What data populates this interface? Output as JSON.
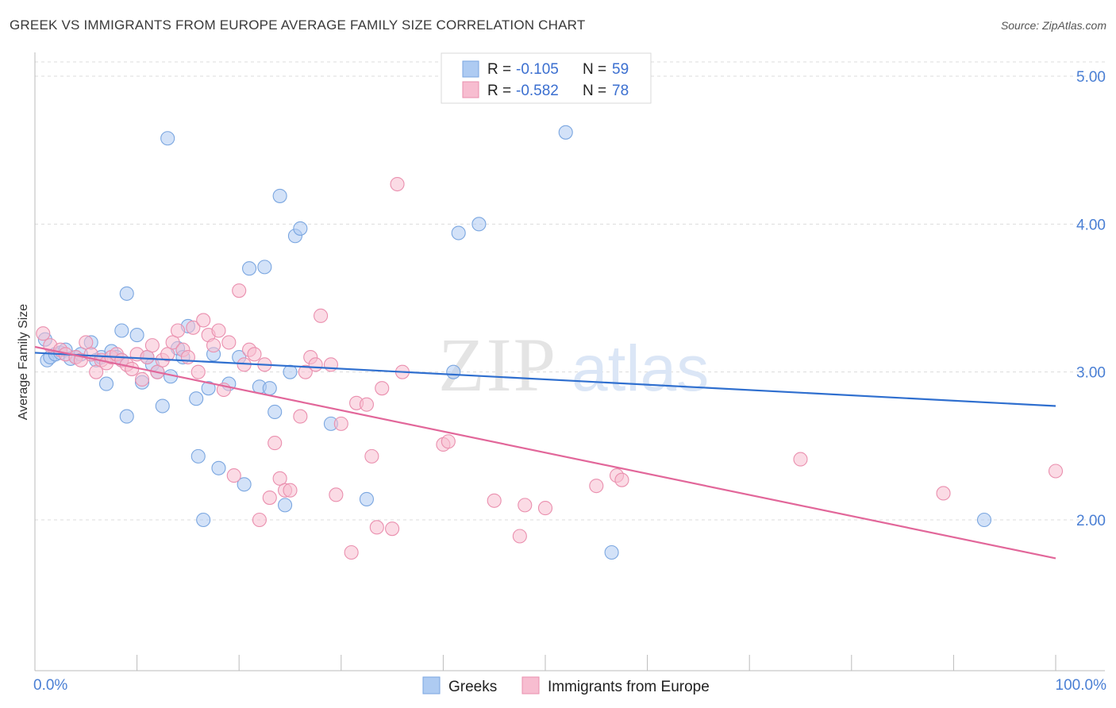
{
  "title": "GREEK VS IMMIGRANTS FROM EUROPE AVERAGE FAMILY SIZE CORRELATION CHART",
  "source": "Source: ZipAtlas.com",
  "watermark": {
    "zip": "ZIP",
    "atlas": "atlas"
  },
  "legend_top": [
    {
      "r_label": "R =",
      "r_value": "-0.105",
      "n_label": "N =",
      "n_value": "59"
    },
    {
      "r_label": "R =",
      "r_value": "-0.582",
      "n_label": "N =",
      "n_value": "78"
    }
  ],
  "legend_bottom": [
    "Greeks",
    "Immigrants from Europe"
  ],
  "colors": {
    "blue_fill": "#aecbf2",
    "blue_stroke": "#7aa6e0",
    "blue_line": "#2f6fcf",
    "pink_fill": "#f7bdd0",
    "pink_stroke": "#ea8fae",
    "pink_line": "#e2679a",
    "tick_text": "#4a7fd4",
    "grid": "#dcdcdc"
  },
  "chart_data": {
    "type": "scatter",
    "title": "GREEK VS IMMIGRANTS FROM EUROPE AVERAGE FAMILY SIZE CORRELATION CHART",
    "xlabel": "",
    "ylabel": "Average Family Size",
    "xlim": [
      0,
      100
    ],
    "ylim": [
      1.05,
      5.1
    ],
    "x_tick_labels": [
      "0.0%",
      "100.0%"
    ],
    "y_ticks": [
      2.0,
      3.0,
      4.0,
      5.0
    ],
    "y_tick_labels": [
      "2.00",
      "3.00",
      "4.00",
      "5.00"
    ],
    "grid": true,
    "legend_position": "top-center",
    "series": [
      {
        "name": "Greeks",
        "r": -0.105,
        "n": 59,
        "trend": {
          "x": [
            0,
            100
          ],
          "y": [
            3.13,
            2.77
          ]
        },
        "points": [
          [
            1,
            3.22
          ],
          [
            1.2,
            3.08
          ],
          [
            1.5,
            3.1
          ],
          [
            2,
            3.12
          ],
          [
            2.5,
            3.13
          ],
          [
            3,
            3.15
          ],
          [
            3.5,
            3.09
          ],
          [
            4,
            3.1
          ],
          [
            4.5,
            3.12
          ],
          [
            5.5,
            3.2
          ],
          [
            6,
            3.08
          ],
          [
            6.5,
            3.1
          ],
          [
            7,
            2.92
          ],
          [
            7.5,
            3.14
          ],
          [
            8,
            3.1
          ],
          [
            8.5,
            3.08
          ],
          [
            8.5,
            3.28
          ],
          [
            9,
            2.7
          ],
          [
            9,
            3.53
          ],
          [
            10,
            3.25
          ],
          [
            10.5,
            2.93
          ],
          [
            11,
            3.1
          ],
          [
            11.5,
            3.05
          ],
          [
            12,
            3.0
          ],
          [
            12.5,
            2.77
          ],
          [
            13,
            4.58
          ],
          [
            13.3,
            2.97
          ],
          [
            14,
            3.16
          ],
          [
            14.5,
            3.1
          ],
          [
            15,
            3.31
          ],
          [
            15.8,
            2.82
          ],
          [
            16,
            2.43
          ],
          [
            16.5,
            2.0
          ],
          [
            17,
            2.89
          ],
          [
            17.5,
            3.12
          ],
          [
            18,
            2.35
          ],
          [
            19,
            2.92
          ],
          [
            20,
            3.1
          ],
          [
            20.5,
            2.24
          ],
          [
            21,
            3.7
          ],
          [
            22,
            2.9
          ],
          [
            22.5,
            3.71
          ],
          [
            23,
            2.89
          ],
          [
            23.5,
            2.73
          ],
          [
            24,
            4.19
          ],
          [
            24.5,
            2.1
          ],
          [
            25,
            3.0
          ],
          [
            25.5,
            3.92
          ],
          [
            26,
            3.97
          ],
          [
            29,
            2.65
          ],
          [
            32.5,
            2.14
          ],
          [
            41,
            3.0
          ],
          [
            41.5,
            3.94
          ],
          [
            43.5,
            4.0
          ],
          [
            52,
            4.62
          ],
          [
            56.5,
            1.78
          ],
          [
            93,
            2.0
          ]
        ]
      },
      {
        "name": "Immigrants from Europe",
        "r": -0.582,
        "n": 78,
        "trend": {
          "x": [
            0,
            100
          ],
          "y": [
            3.17,
            1.74
          ]
        },
        "points": [
          [
            0.8,
            3.26
          ],
          [
            1.5,
            3.18
          ],
          [
            2.5,
            3.15
          ],
          [
            3,
            3.12
          ],
          [
            4,
            3.1
          ],
          [
            4.5,
            3.08
          ],
          [
            5,
            3.2
          ],
          [
            5.5,
            3.12
          ],
          [
            6,
            3.0
          ],
          [
            6.5,
            3.08
          ],
          [
            7,
            3.06
          ],
          [
            7.5,
            3.1
          ],
          [
            8,
            3.12
          ],
          [
            8.5,
            3.08
          ],
          [
            9,
            3.05
          ],
          [
            9.5,
            3.02
          ],
          [
            10,
            3.12
          ],
          [
            10.5,
            2.95
          ],
          [
            11,
            3.1
          ],
          [
            11.5,
            3.18
          ],
          [
            12,
            3.0
          ],
          [
            12.5,
            3.08
          ],
          [
            13,
            3.12
          ],
          [
            13.5,
            3.2
          ],
          [
            14,
            3.28
          ],
          [
            14.5,
            3.15
          ],
          [
            15,
            3.1
          ],
          [
            15.5,
            3.3
          ],
          [
            16,
            3.0
          ],
          [
            16.5,
            3.35
          ],
          [
            17,
            3.25
          ],
          [
            17.5,
            3.18
          ],
          [
            18,
            3.28
          ],
          [
            18.5,
            2.88
          ],
          [
            19,
            3.2
          ],
          [
            19.5,
            2.3
          ],
          [
            20,
            3.55
          ],
          [
            20.5,
            3.05
          ],
          [
            21,
            3.15
          ],
          [
            21.5,
            3.12
          ],
          [
            22,
            2.0
          ],
          [
            22.5,
            3.05
          ],
          [
            23,
            2.15
          ],
          [
            23.5,
            2.52
          ],
          [
            24,
            2.28
          ],
          [
            24.5,
            2.2
          ],
          [
            25,
            2.2
          ],
          [
            26,
            2.7
          ],
          [
            26.5,
            3.0
          ],
          [
            27,
            3.1
          ],
          [
            27.5,
            3.05
          ],
          [
            28,
            3.38
          ],
          [
            29,
            3.05
          ],
          [
            29.5,
            2.17
          ],
          [
            30,
            2.65
          ],
          [
            31,
            1.78
          ],
          [
            31.5,
            2.79
          ],
          [
            32.5,
            2.78
          ],
          [
            33,
            2.43
          ],
          [
            33.5,
            1.95
          ],
          [
            34,
            2.89
          ],
          [
            35,
            1.94
          ],
          [
            35.5,
            4.27
          ],
          [
            36,
            3.0
          ],
          [
            40,
            2.51
          ],
          [
            40.5,
            2.53
          ],
          [
            45,
            2.13
          ],
          [
            47.5,
            1.89
          ],
          [
            48,
            2.1
          ],
          [
            50,
            2.08
          ],
          [
            55,
            2.23
          ],
          [
            57,
            2.3
          ],
          [
            57.5,
            2.27
          ],
          [
            75,
            2.41
          ],
          [
            89,
            2.18
          ],
          [
            100,
            2.33
          ]
        ]
      }
    ]
  }
}
